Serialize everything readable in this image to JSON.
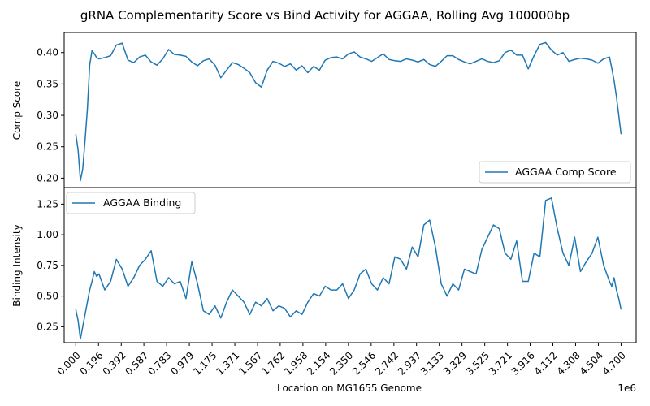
{
  "chart_data": {
    "type": "line",
    "title": "gRNA Complementarity Score vs Bind Activity for AGGAA, Rolling Avg 100000bp",
    "xlabel": "Location on MG1655 Genome",
    "x_multiplier": "1e6",
    "xlim": [
      -0.1,
      4.83
    ],
    "xticks": [
      "0.000",
      "0.196",
      "0.392",
      "0.587",
      "0.783",
      "0.979",
      "1.175",
      "1.371",
      "1.567",
      "1.762",
      "1.958",
      "2.154",
      "2.350",
      "2.546",
      "2.742",
      "2.937",
      "3.133",
      "3.329",
      "3.525",
      "3.721",
      "3.916",
      "4.112",
      "4.308",
      "4.504",
      "4.700"
    ],
    "color": "#1f77b4",
    "panels": [
      {
        "ylabel": "Comp Score",
        "ylim": [
          0.185,
          0.432
        ],
        "yticks": [
          "0.20",
          "0.25",
          "0.30",
          "0.35",
          "0.40"
        ],
        "legend_position": "lower right",
        "series": [
          {
            "name": "AGGAA Comp Score",
            "x": [
              0.0,
              0.02,
              0.04,
              0.06,
              0.08,
              0.1,
              0.12,
              0.14,
              0.16,
              0.18,
              0.2,
              0.25,
              0.3,
              0.35,
              0.4,
              0.45,
              0.5,
              0.55,
              0.6,
              0.65,
              0.7,
              0.75,
              0.8,
              0.85,
              0.9,
              0.95,
              1.0,
              1.05,
              1.1,
              1.15,
              1.2,
              1.25,
              1.3,
              1.35,
              1.4,
              1.45,
              1.5,
              1.55,
              1.6,
              1.65,
              1.7,
              1.75,
              1.8,
              1.85,
              1.9,
              1.95,
              2.0,
              2.05,
              2.1,
              2.15,
              2.2,
              2.25,
              2.3,
              2.35,
              2.4,
              2.45,
              2.5,
              2.55,
              2.6,
              2.65,
              2.7,
              2.75,
              2.8,
              2.85,
              2.9,
              2.95,
              3.0,
              3.05,
              3.1,
              3.15,
              3.2,
              3.25,
              3.3,
              3.35,
              3.4,
              3.45,
              3.5,
              3.55,
              3.6,
              3.65,
              3.7,
              3.75,
              3.8,
              3.85,
              3.9,
              3.95,
              4.0,
              4.05,
              4.1,
              4.15,
              4.2,
              4.25,
              4.3,
              4.35,
              4.4,
              4.45,
              4.5,
              4.55,
              4.6,
              4.62,
              4.64,
              4.66,
              4.68,
              4.7
            ],
            "values": [
              0.27,
              0.245,
              0.196,
              0.215,
              0.26,
              0.31,
              0.38,
              0.403,
              0.398,
              0.392,
              0.39,
              0.392,
              0.395,
              0.412,
              0.415,
              0.388,
              0.384,
              0.393,
              0.396,
              0.385,
              0.38,
              0.39,
              0.405,
              0.397,
              0.396,
              0.394,
              0.385,
              0.379,
              0.387,
              0.39,
              0.38,
              0.36,
              0.372,
              0.384,
              0.381,
              0.375,
              0.368,
              0.352,
              0.345,
              0.372,
              0.386,
              0.383,
              0.378,
              0.382,
              0.372,
              0.379,
              0.368,
              0.378,
              0.372,
              0.388,
              0.392,
              0.393,
              0.39,
              0.398,
              0.401,
              0.393,
              0.39,
              0.386,
              0.392,
              0.398,
              0.389,
              0.387,
              0.386,
              0.39,
              0.388,
              0.385,
              0.389,
              0.381,
              0.378,
              0.386,
              0.395,
              0.395,
              0.389,
              0.385,
              0.382,
              0.386,
              0.39,
              0.386,
              0.384,
              0.387,
              0.4,
              0.404,
              0.396,
              0.396,
              0.374,
              0.395,
              0.413,
              0.416,
              0.404,
              0.396,
              0.4,
              0.386,
              0.389,
              0.391,
              0.39,
              0.388,
              0.383,
              0.39,
              0.393,
              0.375,
              0.355,
              0.33,
              0.3,
              0.27
            ]
          }
        ]
      },
      {
        "ylabel": "Binding Intensity",
        "ylim": [
          0.12,
          1.385
        ],
        "yticks": [
          "0.25",
          "0.50",
          "0.75",
          "1.00",
          "1.25"
        ],
        "legend_position": "upper left",
        "series": [
          {
            "name": "AGGAA Binding",
            "x": [
              0.0,
              0.02,
              0.04,
              0.06,
              0.08,
              0.1,
              0.12,
              0.14,
              0.16,
              0.18,
              0.2,
              0.25,
              0.3,
              0.35,
              0.4,
              0.45,
              0.5,
              0.55,
              0.6,
              0.65,
              0.7,
              0.75,
              0.8,
              0.85,
              0.9,
              0.95,
              1.0,
              1.05,
              1.1,
              1.15,
              1.2,
              1.25,
              1.3,
              1.35,
              1.4,
              1.45,
              1.5,
              1.55,
              1.6,
              1.65,
              1.7,
              1.75,
              1.8,
              1.85,
              1.9,
              1.95,
              2.0,
              2.05,
              2.1,
              2.15,
              2.2,
              2.25,
              2.3,
              2.35,
              2.4,
              2.45,
              2.5,
              2.55,
              2.6,
              2.65,
              2.7,
              2.75,
              2.8,
              2.85,
              2.9,
              2.95,
              3.0,
              3.05,
              3.1,
              3.15,
              3.2,
              3.25,
              3.3,
              3.35,
              3.4,
              3.45,
              3.5,
              3.55,
              3.6,
              3.65,
              3.7,
              3.75,
              3.8,
              3.85,
              3.9,
              3.95,
              4.0,
              4.05,
              4.1,
              4.15,
              4.2,
              4.25,
              4.3,
              4.35,
              4.4,
              4.45,
              4.5,
              4.55,
              4.6,
              4.62,
              4.64,
              4.66,
              4.68,
              4.7
            ],
            "values": [
              0.39,
              0.3,
              0.15,
              0.25,
              0.35,
              0.45,
              0.55,
              0.62,
              0.7,
              0.66,
              0.68,
              0.55,
              0.62,
              0.8,
              0.72,
              0.58,
              0.65,
              0.75,
              0.8,
              0.87,
              0.62,
              0.58,
              0.65,
              0.6,
              0.62,
              0.48,
              0.78,
              0.6,
              0.38,
              0.35,
              0.42,
              0.32,
              0.45,
              0.55,
              0.5,
              0.45,
              0.35,
              0.45,
              0.42,
              0.48,
              0.38,
              0.42,
              0.4,
              0.33,
              0.38,
              0.35,
              0.45,
              0.52,
              0.5,
              0.58,
              0.55,
              0.55,
              0.6,
              0.48,
              0.55,
              0.68,
              0.72,
              0.6,
              0.55,
              0.65,
              0.6,
              0.82,
              0.8,
              0.72,
              0.9,
              0.82,
              1.08,
              1.12,
              0.9,
              0.6,
              0.5,
              0.6,
              0.55,
              0.72,
              0.7,
              0.68,
              0.88,
              0.98,
              1.08,
              1.05,
              0.85,
              0.8,
              0.95,
              0.62,
              0.62,
              0.85,
              0.82,
              1.28,
              1.3,
              1.05,
              0.85,
              0.75,
              0.98,
              0.7,
              0.78,
              0.85,
              0.98,
              0.75,
              0.62,
              0.58,
              0.65,
              0.55,
              0.48,
              0.39
            ]
          }
        ]
      }
    ]
  }
}
